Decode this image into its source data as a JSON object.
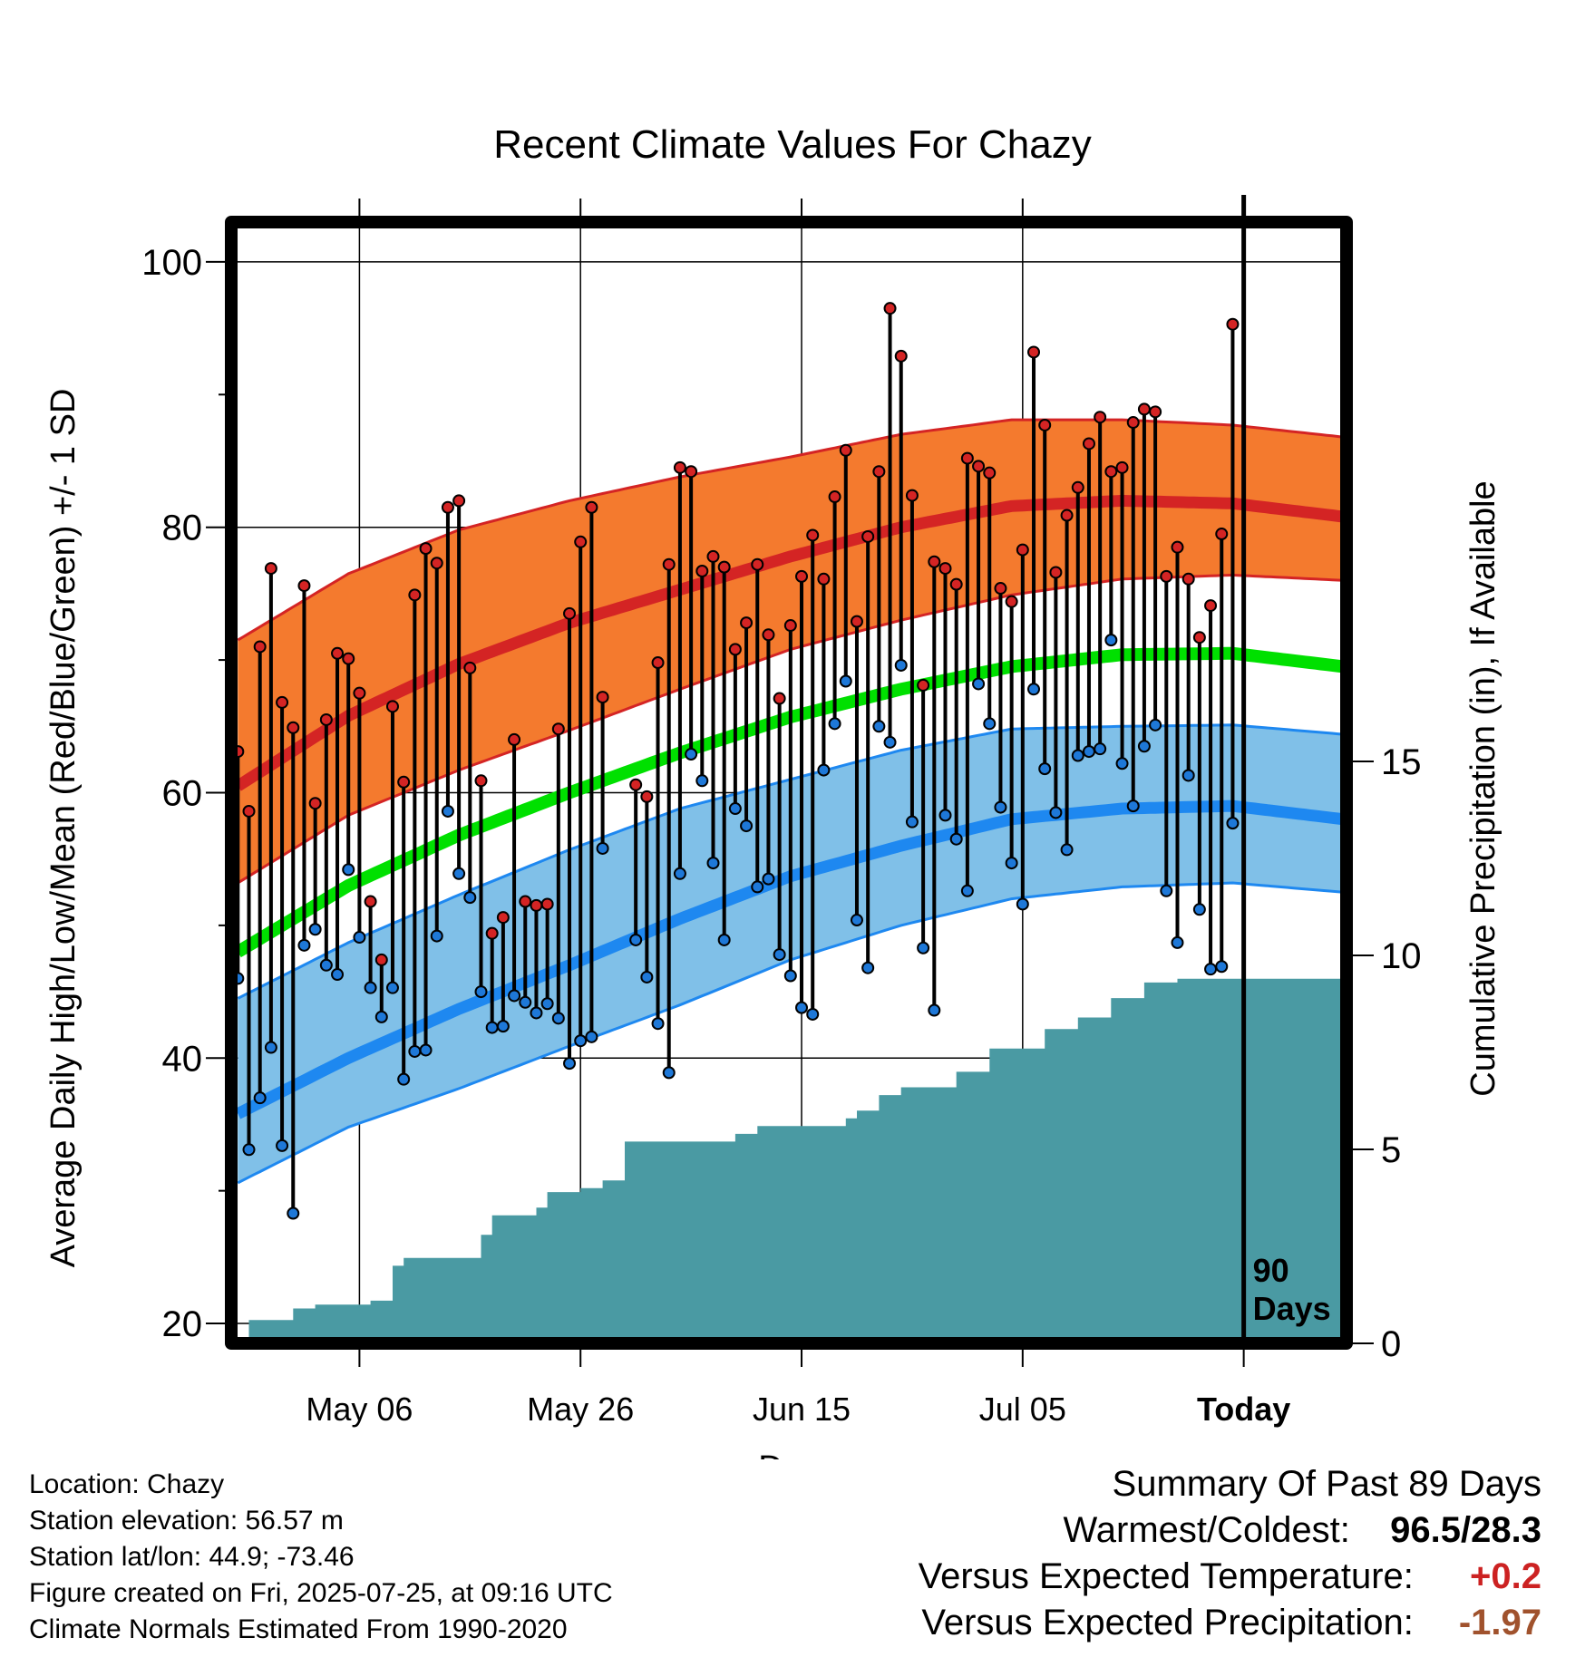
{
  "chart_data": {
    "type": "line",
    "title": "Recent Climate Values For Chazy",
    "xlabel": "Day",
    "ylabel": "Average Daily High/Low/Mean (Red/Blue/Green) +/- 1 SD",
    "y2label": "Cumulative Precipitation (in), If Available",
    "ylim": [
      18.5,
      103
    ],
    "y_ticks": [
      20,
      40,
      60,
      80,
      100
    ],
    "y2_ticks": [
      0,
      5,
      10,
      15
    ],
    "y2_range": [
      0,
      28.9
    ],
    "x_ticks": [
      "May 06",
      "May 26",
      "Jun 15",
      "Jul 05",
      "Today"
    ],
    "x_tick_days": [
      11,
      31,
      51,
      71,
      91
    ],
    "x_range": [
      -0.6,
      100.3
    ],
    "today_marker": {
      "day": 91,
      "label_line1": "90",
      "label_line2": "Days"
    },
    "grid": true,
    "normals": {
      "days": [
        0,
        10,
        20,
        30,
        40,
        50,
        60,
        70,
        80,
        90,
        100
      ],
      "high_mean": [
        60.5,
        65.8,
        69.7,
        72.8,
        75.3,
        77.8,
        80.0,
        81.6,
        82.0,
        81.8,
        80.8
      ],
      "high_upper": [
        71.5,
        76.5,
        79.8,
        82.0,
        83.8,
        85.3,
        87.0,
        88.1,
        88.1,
        87.7,
        86.8
      ],
      "high_lower": [
        53.2,
        58.3,
        61.7,
        64.7,
        67.8,
        70.8,
        73.0,
        74.9,
        76.1,
        76.4,
        76.0
      ],
      "mean": [
        48.0,
        53.0,
        56.8,
        60.0,
        63.0,
        65.7,
        67.8,
        69.5,
        70.4,
        70.5,
        69.5
      ],
      "low_mean": [
        35.8,
        40.0,
        43.7,
        47.0,
        50.5,
        53.7,
        56.0,
        58.0,
        58.8,
        59.0,
        58.0
      ],
      "low_upper": [
        44.5,
        48.7,
        52.3,
        55.7,
        58.8,
        61.0,
        63.2,
        64.8,
        65.0,
        65.1,
        64.4
      ],
      "low_lower": [
        30.6,
        34.8,
        37.7,
        40.9,
        44.0,
        47.4,
        50.0,
        52.0,
        52.9,
        53.2,
        52.5
      ]
    },
    "observations": {
      "start_day": 0,
      "high": [
        63.1,
        58.6,
        71.0,
        76.9,
        66.8,
        64.9,
        75.6,
        59.2,
        65.5,
        70.5,
        70.1,
        67.5,
        51.8,
        47.4,
        66.5,
        60.8,
        74.9,
        78.4,
        77.3,
        81.5,
        82.0,
        69.4,
        60.9,
        49.4,
        50.6,
        64.0,
        51.8,
        51.5,
        51.6,
        64.8,
        73.5,
        78.9,
        81.5,
        67.2,
        null,
        null,
        60.6,
        59.7,
        69.8,
        77.2,
        84.5,
        84.2,
        76.7,
        77.8,
        77.0,
        70.8,
        72.8,
        77.2,
        71.9,
        67.1,
        72.6,
        76.3,
        79.4,
        76.1,
        82.3,
        85.8,
        72.9,
        79.3,
        84.2,
        96.5,
        92.9,
        82.4,
        68.1,
        77.4,
        76.9,
        75.7,
        85.2,
        84.6,
        84.1,
        75.4,
        74.4,
        78.3,
        93.2,
        87.7,
        76.6,
        80.9,
        83.0,
        86.3,
        88.3,
        84.2,
        84.5,
        87.9,
        88.9,
        88.7,
        76.3,
        78.5,
        76.1,
        71.7,
        74.1,
        79.5,
        95.3
      ],
      "low": [
        46.0,
        33.1,
        37.0,
        40.8,
        33.4,
        28.3,
        48.5,
        49.7,
        47.0,
        46.3,
        54.2,
        49.1,
        45.3,
        43.1,
        45.3,
        38.4,
        40.5,
        40.6,
        49.2,
        58.6,
        53.9,
        52.1,
        45.0,
        42.3,
        42.4,
        44.7,
        44.2,
        43.4,
        44.1,
        43.0,
        39.6,
        41.3,
        41.6,
        55.8,
        null,
        null,
        48.9,
        46.1,
        42.6,
        38.9,
        53.9,
        62.9,
        60.9,
        54.7,
        48.9,
        58.8,
        57.5,
        52.9,
        53.5,
        47.8,
        46.2,
        43.8,
        43.3,
        61.7,
        65.2,
        68.4,
        50.4,
        46.8,
        65.0,
        63.8,
        69.6,
        57.8,
        48.3,
        43.6,
        58.3,
        56.5,
        52.6,
        68.2,
        65.2,
        58.9,
        54.7,
        51.6,
        67.8,
        61.8,
        58.5,
        55.7,
        62.8,
        63.1,
        63.3,
        71.5,
        62.2,
        59.0,
        63.5,
        65.1,
        52.6,
        48.7,
        61.3,
        51.2,
        46.7,
        46.9,
        57.7
      ]
    },
    "precipitation": {
      "days": [
        0,
        1,
        2,
        3,
        4,
        5,
        6,
        7,
        8,
        9,
        10,
        11,
        12,
        13,
        14,
        15,
        16,
        17,
        18,
        19,
        20,
        21,
        22,
        23,
        24,
        25,
        26,
        27,
        28,
        29,
        30,
        31,
        32,
        33,
        34,
        35,
        36,
        37,
        38,
        39,
        40,
        41,
        42,
        43,
        44,
        45,
        46,
        47,
        48,
        49,
        50,
        51,
        52,
        53,
        54,
        55,
        56,
        57,
        58,
        59,
        60,
        61,
        62,
        63,
        64,
        65,
        66,
        67,
        68,
        69,
        70,
        71,
        72,
        73,
        74,
        75,
        76,
        77,
        78,
        79,
        80,
        81,
        82,
        83,
        84,
        85,
        86,
        87,
        88,
        89,
        90,
        91,
        100
      ],
      "cumulative": [
        0.0,
        0.6,
        0.6,
        0.6,
        0.6,
        0.9,
        0.9,
        1.0,
        1.0,
        1.0,
        1.0,
        1.0,
        1.1,
        1.1,
        2.0,
        2.2,
        2.2,
        2.2,
        2.2,
        2.2,
        2.2,
        2.2,
        2.8,
        3.3,
        3.3,
        3.3,
        3.3,
        3.5,
        3.9,
        3.9,
        3.9,
        4.0,
        4.0,
        4.2,
        4.2,
        5.2,
        5.2,
        5.2,
        5.2,
        5.2,
        5.2,
        5.2,
        5.2,
        5.2,
        5.2,
        5.4,
        5.4,
        5.6,
        5.6,
        5.6,
        5.6,
        5.6,
        5.6,
        5.6,
        5.6,
        5.8,
        6.0,
        6.0,
        6.4,
        6.4,
        6.6,
        6.6,
        6.6,
        6.6,
        6.6,
        7.0,
        7.0,
        7.0,
        7.6,
        7.6,
        7.6,
        7.6,
        7.6,
        8.1,
        8.1,
        8.1,
        8.4,
        8.4,
        8.4,
        8.9,
        8.9,
        8.9,
        9.3,
        9.3,
        9.3,
        9.4,
        9.4,
        9.4,
        9.4,
        9.4,
        9.4,
        9.4,
        9.4
      ]
    },
    "colors": {
      "high_band": "#f47a2e",
      "high_line": "#d42424",
      "high_dot": "#d42424",
      "mean_line": "#00e000",
      "low_band": "#80c0e8",
      "low_line": "#1e88f0",
      "low_dot": "#1e78d8",
      "precip": "#4a9aa3"
    }
  },
  "footer": {
    "location": "Location: Chazy",
    "elevation": "Station elevation: 56.57 m",
    "latlon": "Station lat/lon: 44.9; -73.46",
    "created": "Figure created on Fri, 2025-07-25, at 09:16 UTC",
    "normals_note": "Climate Normals Estimated From 1990-2020"
  },
  "summary": {
    "heading": "Summary Of Past 89 Days",
    "warmest_label": "Warmest/Coldest:",
    "warmest_value": "96.5/28.3",
    "temp_label": "Versus Expected Temperature:",
    "temp_value": "+0.2",
    "precip_label": "Versus Expected Precipitation:",
    "precip_value": "-1.97"
  }
}
